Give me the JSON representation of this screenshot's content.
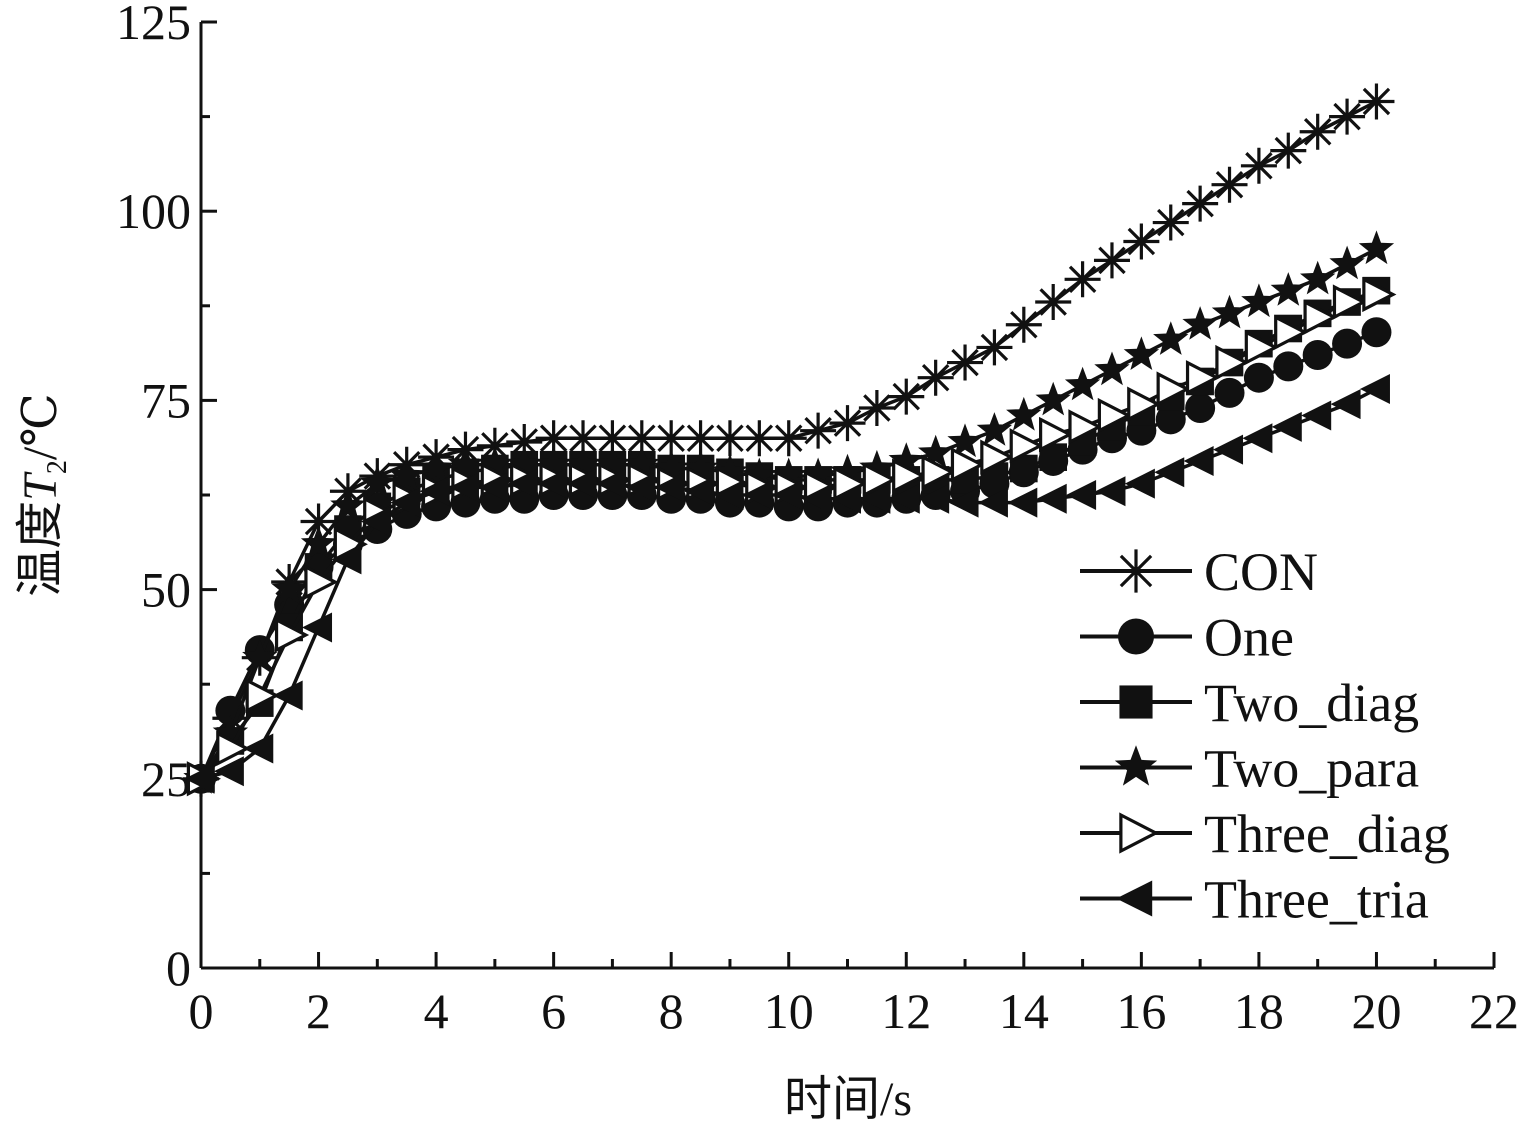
{
  "chart_data": {
    "type": "line",
    "xlabel": "时间/s",
    "ylabel": {
      "prefix": "温度",
      "var": "T",
      "sub": "2",
      "suffix": "/℃"
    },
    "xlim": [
      0,
      22
    ],
    "ylim": [
      0,
      125
    ],
    "xticks": [
      0,
      2,
      4,
      6,
      8,
      10,
      12,
      14,
      16,
      18,
      20,
      22
    ],
    "yticks": [
      0,
      25,
      50,
      75,
      100,
      125
    ],
    "grid": false,
    "legend_position": "lower-right",
    "line_color": "#111111",
    "series": [
      {
        "name": "CON",
        "marker": "asterisk",
        "x": [
          0,
          0.5,
          1,
          1.5,
          2,
          2.5,
          3,
          3.5,
          4,
          4.5,
          5,
          5.5,
          6,
          6.5,
          7,
          7.5,
          8,
          8.5,
          9,
          9.5,
          10,
          10.5,
          11,
          11.5,
          12,
          12.5,
          13,
          13.5,
          14,
          14.5,
          15,
          15.5,
          16,
          16.5,
          17,
          17.5,
          18,
          18.5,
          19,
          19.5,
          20
        ],
        "y": [
          25,
          33,
          41,
          51,
          59,
          63,
          65,
          66.5,
          67.5,
          68.5,
          69,
          69.5,
          70,
          70,
          70,
          70,
          70,
          70,
          70,
          70,
          70,
          71,
          72,
          74,
          75.5,
          78,
          80,
          82,
          85,
          88,
          91,
          93.5,
          96,
          98.5,
          101,
          103.5,
          106,
          108,
          110.5,
          112.5,
          114.5
        ]
      },
      {
        "name": "One",
        "marker": "circle",
        "x": [
          0,
          0.5,
          1,
          1.5,
          2,
          2.5,
          3,
          3.5,
          4,
          4.5,
          5,
          5.5,
          6,
          6.5,
          7,
          7.5,
          8,
          8.5,
          9,
          9.5,
          10,
          10.5,
          11,
          11.5,
          12,
          12.5,
          13,
          13.5,
          14,
          14.5,
          15,
          15.5,
          16,
          16.5,
          17,
          17.5,
          18,
          18.5,
          19,
          19.5,
          20
        ],
        "y": [
          25,
          34,
          42,
          48,
          53,
          56,
          58,
          60,
          61,
          61.5,
          62,
          62,
          62.5,
          62.5,
          62.5,
          62.5,
          62,
          62,
          61.5,
          61.5,
          61,
          61,
          61.5,
          61.5,
          62,
          62.5,
          63,
          64,
          65.5,
          67,
          68.5,
          70,
          71,
          72.5,
          74,
          76,
          78,
          79.5,
          81,
          82.5,
          84
        ]
      },
      {
        "name": "Two_diag",
        "marker": "square",
        "x": [
          0,
          0.5,
          1,
          1.5,
          2,
          2.5,
          3,
          3.5,
          4,
          4.5,
          5,
          5.5,
          6,
          6.5,
          7,
          7.5,
          8,
          8.5,
          9,
          9.5,
          10,
          10.5,
          11,
          11.5,
          12,
          12.5,
          13,
          13.5,
          14,
          14.5,
          15,
          15.5,
          16,
          16.5,
          17,
          17.5,
          18,
          18.5,
          19,
          19.5,
          20
        ],
        "y": [
          25,
          30,
          35,
          45,
          53,
          58,
          61,
          63,
          64.5,
          65.5,
          66,
          66.5,
          66.5,
          66.5,
          66.5,
          66.5,
          66,
          66,
          65.5,
          65,
          64.5,
          64.5,
          64.5,
          64.5,
          64.5,
          64.5,
          64.5,
          65,
          66,
          67.5,
          69.5,
          71.5,
          73.5,
          75.5,
          77.5,
          80,
          82.5,
          84.5,
          86.5,
          88,
          89.5
        ]
      },
      {
        "name": "Two_para",
        "marker": "star",
        "x": [
          0,
          0.5,
          1,
          1.5,
          2,
          2.5,
          3,
          3.5,
          4,
          4.5,
          5,
          5.5,
          6,
          6.5,
          7,
          7.5,
          8,
          8.5,
          9,
          9.5,
          10,
          10.5,
          11,
          11.5,
          12,
          12.5,
          13,
          13.5,
          14,
          14.5,
          15,
          15.5,
          16,
          16.5,
          17,
          17.5,
          18,
          18.5,
          19,
          19.5,
          20
        ],
        "y": [
          25,
          31,
          41,
          50,
          56,
          61,
          64,
          65,
          66,
          66.5,
          66.5,
          66.5,
          66.5,
          66.5,
          66.5,
          66.5,
          66,
          66,
          65.5,
          65,
          65,
          65,
          65.5,
          66,
          67,
          68,
          69.5,
          71,
          73,
          75,
          77,
          79,
          81,
          83,
          85,
          86.5,
          88,
          89.5,
          91,
          93,
          95
        ]
      },
      {
        "name": "Three_diag",
        "marker": "triangle-right-open",
        "x": [
          0,
          0.5,
          1,
          1.5,
          2,
          2.5,
          3,
          3.5,
          4,
          4.5,
          5,
          5.5,
          6,
          6.5,
          7,
          7.5,
          8,
          8.5,
          9,
          9.5,
          10,
          10.5,
          11,
          11.5,
          12,
          12.5,
          13,
          13.5,
          14,
          14.5,
          15,
          15.5,
          16,
          16.5,
          17,
          17.5,
          18,
          18.5,
          19,
          19.5,
          20
        ],
        "y": [
          25,
          29,
          36,
          44,
          51,
          56,
          60,
          62,
          63,
          64,
          64.5,
          64.5,
          64.5,
          64.5,
          64.5,
          64.5,
          64,
          64,
          64,
          63.5,
          63.5,
          63.5,
          64,
          64.5,
          65,
          65.5,
          66.5,
          67.5,
          69,
          70.5,
          71.5,
          73,
          74.5,
          76.5,
          78,
          80,
          82,
          84,
          86,
          88,
          89
        ]
      },
      {
        "name": "Three_tria",
        "marker": "triangle-left",
        "x": [
          0,
          0.5,
          1,
          1.5,
          2,
          2.5,
          3,
          3.5,
          4,
          4.5,
          5,
          5.5,
          6,
          6.5,
          7,
          7.5,
          8,
          8.5,
          9,
          9.5,
          10,
          10.5,
          11,
          11.5,
          12,
          12.5,
          13,
          13.5,
          14,
          14.5,
          15,
          15.5,
          16,
          16.5,
          17,
          17.5,
          18,
          18.5,
          19,
          19.5,
          20
        ],
        "y": [
          25,
          26,
          29,
          36,
          45,
          54,
          59,
          61.5,
          63,
          63.5,
          63.5,
          64,
          64,
          64,
          64,
          63.5,
          63.5,
          63,
          62.5,
          62.5,
          62.5,
          62,
          62,
          62,
          62,
          62,
          61.5,
          61.5,
          61.5,
          62,
          62.5,
          63,
          64,
          65.5,
          67,
          68.5,
          70,
          71.5,
          73,
          74.5,
          76.5
        ]
      }
    ]
  }
}
